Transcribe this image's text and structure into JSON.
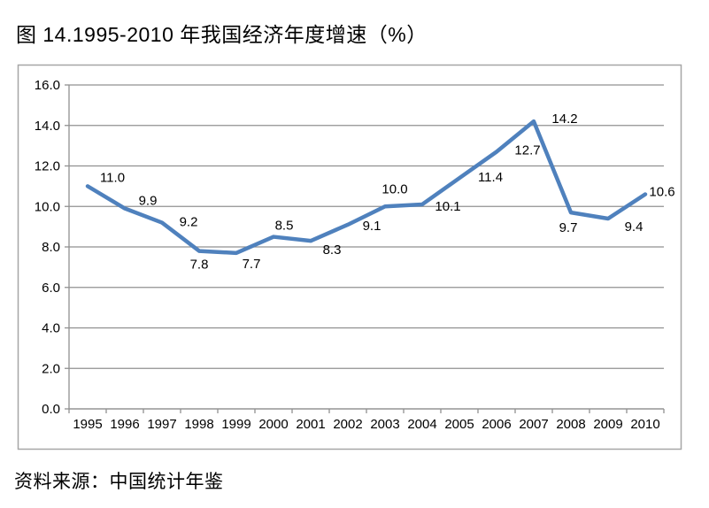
{
  "title": "图 14.1995-2010 年我国经济年度增速（%）",
  "source_note": "资料来源：中国统计年鉴",
  "chart_data": {
    "type": "line",
    "title": "图 14.1995-2010 年我国经济年度增速（%）",
    "categories": [
      "1995",
      "1996",
      "1997",
      "1998",
      "1999",
      "2000",
      "2001",
      "2002",
      "2003",
      "2004",
      "2005",
      "2006",
      "2007",
      "2008",
      "2009",
      "2010"
    ],
    "series": [
      {
        "name": "年度增速",
        "values": [
          11.0,
          9.9,
          9.2,
          7.8,
          7.7,
          8.5,
          8.3,
          9.1,
          10.0,
          10.1,
          11.4,
          12.7,
          14.2,
          9.7,
          9.4,
          10.6
        ]
      }
    ],
    "data_labels": [
      "11.0",
      "9.9",
      "9.2",
      "7.8",
      "7.7",
      "8.5",
      "8.3",
      "9.1",
      "10.0",
      "10.1",
      "11.4",
      "12.7",
      "14.2",
      "9.7",
      "9.4",
      "10.6"
    ],
    "xlabel": "",
    "ylabel": "",
    "ylim": [
      0,
      16
    ],
    "ytick_step": 2,
    "ytick_labels": [
      "0.0",
      "2.0",
      "4.0",
      "6.0",
      "8.0",
      "10.0",
      "12.0",
      "14.0",
      "16.0"
    ],
    "grid": true,
    "legend": false,
    "colors": {
      "line": "#4F81BD",
      "gridline": "#909090",
      "axis": "#909090",
      "frame_border": "#A6A6A6",
      "text": "#000000",
      "background": "#FFFFFF"
    }
  }
}
